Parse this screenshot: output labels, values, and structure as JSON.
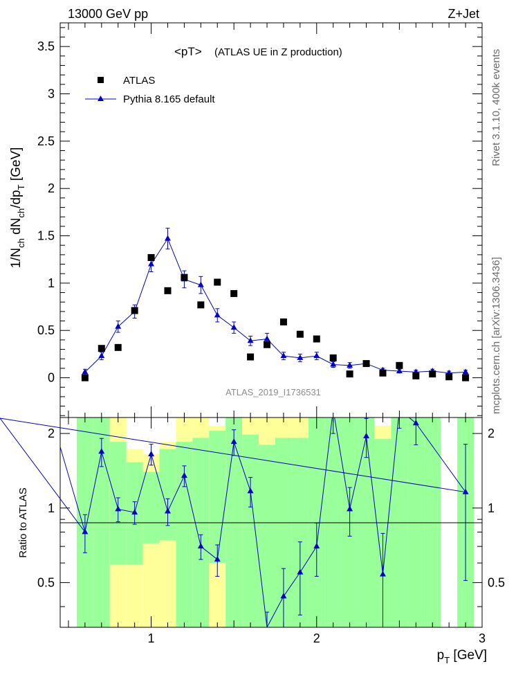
{
  "header": {
    "energy_label": "13000 GeV pp",
    "process_label": "Z+Jet",
    "plot_title": "<pT>",
    "plot_subtitle": "(ATLAS UE in Z production)",
    "analysis_id": "ATLAS_2019_I1736531",
    "rivet_label": "Rivet 3.1.10,  400k events",
    "source_label": "mcplots.cern.ch [arXiv:1306.3436]"
  },
  "legend": {
    "data_label": "ATLAS",
    "mc_label": "Pythia 8.165 default"
  },
  "axes": {
    "y_main_label_parts": [
      "1/N",
      "ch",
      " dN",
      "ch",
      "/dp",
      "T",
      " [GeV]"
    ],
    "y_ratio_label": "Ratio to ATLAS",
    "x_label_parts": [
      "p",
      "T",
      " [GeV]"
    ]
  },
  "colors": {
    "mc": "#0000cc",
    "band_green": "#99ff99",
    "band_yellow": "#ffff99"
  },
  "chart_data": [
    {
      "type": "scatter",
      "panel": "main",
      "xlim": [
        0.45,
        3.0
      ],
      "ylim": [
        -0.42,
        3.75
      ],
      "x_ticks": [
        "1",
        "2",
        "3"
      ],
      "y_ticks": [
        "0",
        "0.5",
        "1",
        "1.5",
        "2",
        "2.5",
        "3",
        "3.5"
      ],
      "series": [
        {
          "name": "ATLAS",
          "x": [
            0.6,
            0.7,
            0.8,
            0.9,
            1.0,
            1.1,
            1.2,
            1.3,
            1.4,
            1.5,
            1.6,
            1.7,
            1.8,
            1.9,
            2.0,
            2.1,
            2.2,
            2.3,
            2.4,
            2.5,
            2.6,
            2.7,
            2.8,
            2.9
          ],
          "x_plot_offsets_note": "",
          "y": [
            0.0,
            0.31,
            0.32,
            0.71,
            1.27,
            0.92,
            1.06,
            0.77,
            1.01,
            0.89,
            0.22,
            0.35,
            0.59,
            0.46,
            0.41,
            0.21,
            0.04,
            0.15,
            0.05,
            0.13,
            0.02,
            0.04,
            0.01,
            0.0
          ]
        },
        {
          "name": "Pythia 8.165 default",
          "x": [
            0.6,
            0.7,
            0.8,
            0.9,
            1.0,
            1.1,
            1.2,
            1.3,
            1.4,
            1.5,
            1.6,
            1.7,
            1.8,
            1.9,
            2.0,
            2.1,
            2.2,
            2.3,
            2.4,
            2.5,
            2.6,
            2.7,
            2.8,
            2.9
          ],
          "y": [
            0.06,
            0.23,
            0.54,
            0.7,
            1.2,
            1.47,
            1.04,
            0.98,
            0.66,
            0.53,
            0.39,
            0.41,
            0.23,
            0.21,
            0.23,
            0.14,
            0.13,
            0.15,
            0.08,
            0.07,
            0.06,
            0.07,
            0.05,
            0.06
          ],
          "yerr": [
            0.03,
            0.04,
            0.06,
            0.07,
            0.08,
            0.11,
            0.09,
            0.09,
            0.07,
            0.06,
            0.05,
            0.06,
            0.04,
            0.04,
            0.04,
            0.03,
            0.03,
            0.03,
            0.02,
            0.02,
            0.02,
            0.02,
            0.02,
            0.02
          ]
        }
      ]
    },
    {
      "type": "line",
      "panel": "ratio",
      "xlim": [
        0.45,
        3.0
      ],
      "ylim": [
        0.33,
        2.32
      ],
      "y_scale": "log",
      "x_ticks": [
        "1",
        "2",
        "3"
      ],
      "y_ticks": [
        "0.5",
        "1",
        "2"
      ],
      "reference_line": 1,
      "series": [
        {
          "name": "Pythia 8.165 default",
          "x": [
            0.4,
            0.6,
            0.7,
            0.8,
            0.9,
            1.0,
            1.1,
            1.2,
            1.3,
            1.4,
            1.5,
            1.6,
            1.7,
            1.8,
            1.9,
            2.0,
            2.1,
            2.2,
            2.3,
            2.4,
            2.5,
            2.6,
            2.9
          ],
          "y": [
            2.3,
            0.8,
            1.69,
            0.99,
            0.96,
            1.65,
            0.97,
            1.35,
            0.7,
            0.62,
            1.85,
            1.17,
            0.33,
            0.44,
            0.55,
            0.7,
            2.5,
            0.99,
            1.95,
            0.54,
            2.5,
            2.2,
            1.16
          ],
          "yerr": [
            0,
            0.14,
            0.22,
            0.11,
            0.1,
            0.16,
            0.12,
            0.13,
            0.08,
            0.09,
            0.22,
            0.16,
            0.05,
            0.13,
            0.18,
            0.17,
            0.5,
            0.22,
            0.35,
            0.25,
            0.4,
            0.4,
            0.65
          ]
        }
      ],
      "bands": [
        {
          "x0": 0.55,
          "x1": 0.65,
          "g": [
            0.33,
            2.32
          ],
          "y": null
        },
        {
          "x0": 0.65,
          "x1": 0.75,
          "g": [
            0.33,
            2.32
          ],
          "y": null
        },
        {
          "x0": 0.75,
          "x1": 0.85,
          "g": [
            0.59,
            1.85
          ],
          "y": [
            0.33,
            2.32
          ]
        },
        {
          "x0": 0.85,
          "x1": 0.95,
          "g": [
            0.59,
            1.53
          ],
          "y": [
            0.33,
            1.73
          ]
        },
        {
          "x0": 0.95,
          "x1": 1.05,
          "g": [
            0.72,
            1.4
          ],
          "y": [
            0.33,
            1.65
          ]
        },
        {
          "x0": 1.05,
          "x1": 1.15,
          "g": [
            0.74,
            1.73
          ],
          "y": [
            0.33,
            1.85
          ]
        },
        {
          "x0": 1.15,
          "x1": 1.25,
          "g": [
            0.33,
            1.85
          ],
          "y": [
            0.33,
            2.32
          ]
        },
        {
          "x0": 1.25,
          "x1": 1.35,
          "g": [
            0.33,
            1.92
          ],
          "y": [
            0.33,
            2.32
          ]
        },
        {
          "x0": 1.35,
          "x1": 1.45,
          "g": [
            0.6,
            2.05
          ],
          "y": [
            0.33,
            2.15
          ]
        },
        {
          "x0": 1.45,
          "x1": 1.55,
          "g": [
            0.33,
            2.32
          ],
          "y": null
        },
        {
          "x0": 1.55,
          "x1": 1.65,
          "g": [
            0.33,
            1.98
          ],
          "y": [
            0.33,
            2.32
          ]
        },
        {
          "x0": 1.65,
          "x1": 1.75,
          "g": [
            0.33,
            1.8
          ],
          "y": [
            0.33,
            2.32
          ]
        },
        {
          "x0": 1.75,
          "x1": 1.85,
          "g": [
            0.33,
            1.92
          ],
          "y": [
            0.33,
            2.32
          ]
        },
        {
          "x0": 1.85,
          "x1": 1.95,
          "g": [
            0.33,
            1.92
          ],
          "y": [
            0.33,
            2.32
          ]
        },
        {
          "x0": 1.95,
          "x1": 2.05,
          "g": [
            0.33,
            2.32
          ],
          "y": null
        },
        {
          "x0": 2.05,
          "x1": 2.15,
          "g": [
            0.33,
            2.32
          ],
          "y": null
        },
        {
          "x0": 2.15,
          "x1": 2.25,
          "g": [
            0.33,
            2.32
          ],
          "y": null
        },
        {
          "x0": 2.25,
          "x1": 2.35,
          "g": [
            0.33,
            2.32
          ],
          "y": null
        },
        {
          "x0": 2.35,
          "x1": 2.45,
          "g": [
            0.33,
            1.9
          ],
          "y": [
            0.33,
            2.15
          ]
        },
        {
          "x0": 2.45,
          "x1": 2.55,
          "g": [
            0.33,
            2.32
          ],
          "y": null
        },
        {
          "x0": 2.55,
          "x1": 2.65,
          "g": [
            0.33,
            2.32
          ],
          "y": null
        },
        {
          "x0": 2.65,
          "x1": 2.75,
          "g": [
            0.33,
            2.32
          ],
          "y": null
        },
        {
          "x0": 2.85,
          "x1": 2.95,
          "g": [
            0.33,
            2.32
          ],
          "y": null
        }
      ]
    }
  ]
}
